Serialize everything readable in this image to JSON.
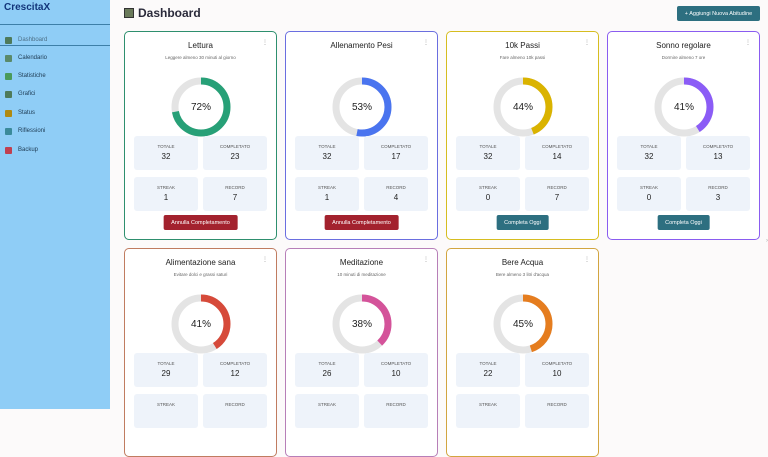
{
  "sidebar": {
    "brand": "CrescitaX",
    "items": [
      {
        "label": "Dashboard",
        "icon": "chart-icon",
        "color": "#4e7a5a"
      },
      {
        "label": "Calendario",
        "icon": "calendar-icon",
        "color": "#5a8a6a"
      },
      {
        "label": "Statistiche",
        "icon": "checklist-icon",
        "color": "#4a9a5a"
      },
      {
        "label": "Grafici",
        "icon": "chart-icon",
        "color": "#4e7a5a"
      },
      {
        "label": "Status",
        "icon": "trophy-icon",
        "color": "#b08a10"
      },
      {
        "label": "Riflessioni",
        "icon": "speech-bubble-icon",
        "color": "#3a8a9a"
      },
      {
        "label": "Backup",
        "icon": "briefcase-icon",
        "color": "#c04050"
      }
    ]
  },
  "header": {
    "title": "Dashboard",
    "add_label": "+ Aggiungi Nuova Abitudine"
  },
  "labels": {
    "totale": "TOTALE",
    "completato": "COMPLETATO",
    "streak": "STREAK",
    "record": "RECORD",
    "menu": "⋮"
  },
  "habits": [
    {
      "name": "Lettura",
      "desc": "Leggere almeno 30 minuti al giorno",
      "percent": 72,
      "pct_label": "72%",
      "totale": "32",
      "completato": "23",
      "streak": "1",
      "record": "7",
      "border": "#2e8f6e",
      "color": "#27a077",
      "button": "Annulla Completamento",
      "btn_color": "#a3222e"
    },
    {
      "name": "Allenamento Pesi",
      "desc": "",
      "percent": 53,
      "pct_label": "53%",
      "totale": "32",
      "completato": "17",
      "streak": "1",
      "record": "4",
      "border": "#6a6ee0",
      "color": "#4a74ef",
      "button": "Annulla Completamento",
      "btn_color": "#a3222e"
    },
    {
      "name": "10k Passi",
      "desc": "Fare almeno 10k passi",
      "percent": 44,
      "pct_label": "44%",
      "totale": "32",
      "completato": "14",
      "streak": "0",
      "record": "7",
      "border": "#d6bd20",
      "color": "#dab300",
      "button": "Completa Oggi",
      "btn_color": "#2d6f80"
    },
    {
      "name": "Sonno regolare",
      "desc": "Dormire almeno 7 ore",
      "percent": 41,
      "pct_label": "41%",
      "totale": "32",
      "completato": "13",
      "streak": "0",
      "record": "3",
      "border": "#8a5cf0",
      "color": "#8b5cf6",
      "button": "Completa Oggi",
      "btn_color": "#2d6f80"
    },
    {
      "name": "Alimentazione sana",
      "desc": "Evitare dolci e grassi saturi",
      "percent": 41,
      "pct_label": "41%",
      "totale": "29",
      "completato": "12",
      "border": "#c07c60",
      "color": "#d64a3a"
    },
    {
      "name": "Meditazione",
      "desc": "10 minuti di meditazione",
      "percent": 38,
      "pct_label": "38%",
      "totale": "26",
      "completato": "10",
      "border": "#b77fb8",
      "color": "#d4539a"
    },
    {
      "name": "Bere Acqua",
      "desc": "Bere almeno 3 litri d'acqua",
      "percent": 45,
      "pct_label": "45%",
      "totale": "22",
      "completato": "10",
      "border": "#d2a540",
      "color": "#e57d1f"
    }
  ]
}
